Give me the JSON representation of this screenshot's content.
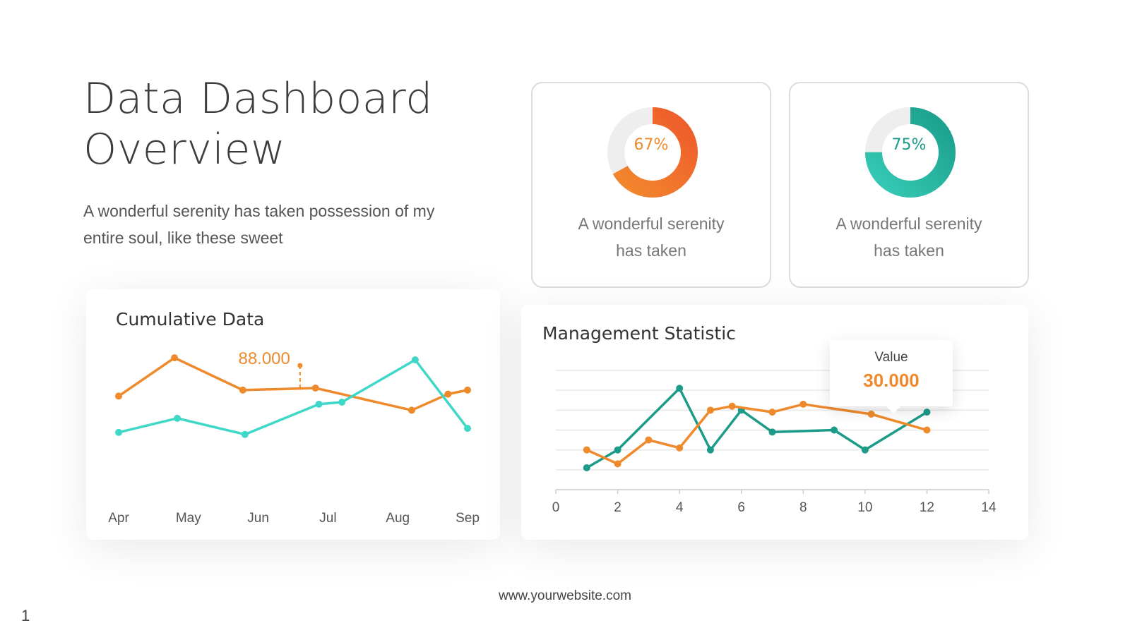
{
  "header": {
    "title_line1": "Data Dashboard",
    "title_line2": "Overview",
    "subtitle": "A wonderful serenity has taken possession of my entire soul, like these sweet"
  },
  "donuts": [
    {
      "percent": 67,
      "label": "67%",
      "caption_line1": "A wonderful serenity",
      "caption_line2": "has taken",
      "color_start": "#f28a2e",
      "color_end": "#ee5a2a"
    },
    {
      "percent": 75,
      "label": "75%",
      "caption_line1": "A wonderful serenity",
      "caption_line2": "has taken",
      "color_start": "#36cbb6",
      "color_end": "#1a9e8c"
    }
  ],
  "colors": {
    "orange": "#ef8a2c",
    "teal_light": "#3fd8c8",
    "teal_dark": "#1b9b88",
    "track": "#eeeeee"
  },
  "chart_data": [
    {
      "type": "line",
      "title": "Cumulative Data",
      "categories": [
        "Apr",
        "May",
        "Jun",
        "Jul",
        "Aug",
        "Sep"
      ],
      "x": [
        0,
        0.85,
        1.8,
        2.8,
        3.2,
        4.25,
        4.7,
        5.0
      ],
      "series": [
        {
          "color": "#ef8a2c",
          "x": [
            0,
            0.8,
            1.78,
            2.82,
            4.2,
            4.72,
            5.0
          ],
          "values": [
            78,
            97,
            81,
            82,
            71,
            79,
            81
          ]
        },
        {
          "color": "#3fd8c8",
          "x": [
            0,
            0.84,
            1.81,
            2.87,
            3.2,
            4.25,
            5.0
          ],
          "values": [
            60,
            67,
            59,
            74,
            75,
            96,
            62
          ]
        }
      ],
      "annotation": {
        "label": "88.000",
        "x": 2.6
      },
      "ylim": [
        40,
        110
      ]
    },
    {
      "type": "line",
      "title": "Management Statistic",
      "x_ticks": [
        0,
        2,
        4,
        6,
        8,
        10,
        12,
        14
      ],
      "xlim": [
        0,
        14
      ],
      "ylim": [
        0,
        6
      ],
      "series": [
        {
          "color": "#1b9b88",
          "x": [
            1,
            2,
            4,
            5,
            6,
            7,
            9,
            10,
            12
          ],
          "values": [
            1.1,
            2.0,
            5.1,
            2.0,
            4.0,
            2.9,
            3.0,
            2.0,
            3.9
          ]
        },
        {
          "color": "#ef8a2c",
          "x": [
            1,
            2,
            3,
            4,
            5,
            5.7,
            7,
            8,
            10.2,
            12
          ],
          "values": [
            2.0,
            1.3,
            2.5,
            2.1,
            4.0,
            4.2,
            3.9,
            4.3,
            3.8,
            3.0
          ]
        }
      ],
      "tooltip": {
        "label": "Value",
        "value": "30.000"
      }
    }
  ],
  "footer": {
    "url": "www.yourwebsite.com",
    "page_number": "1"
  }
}
